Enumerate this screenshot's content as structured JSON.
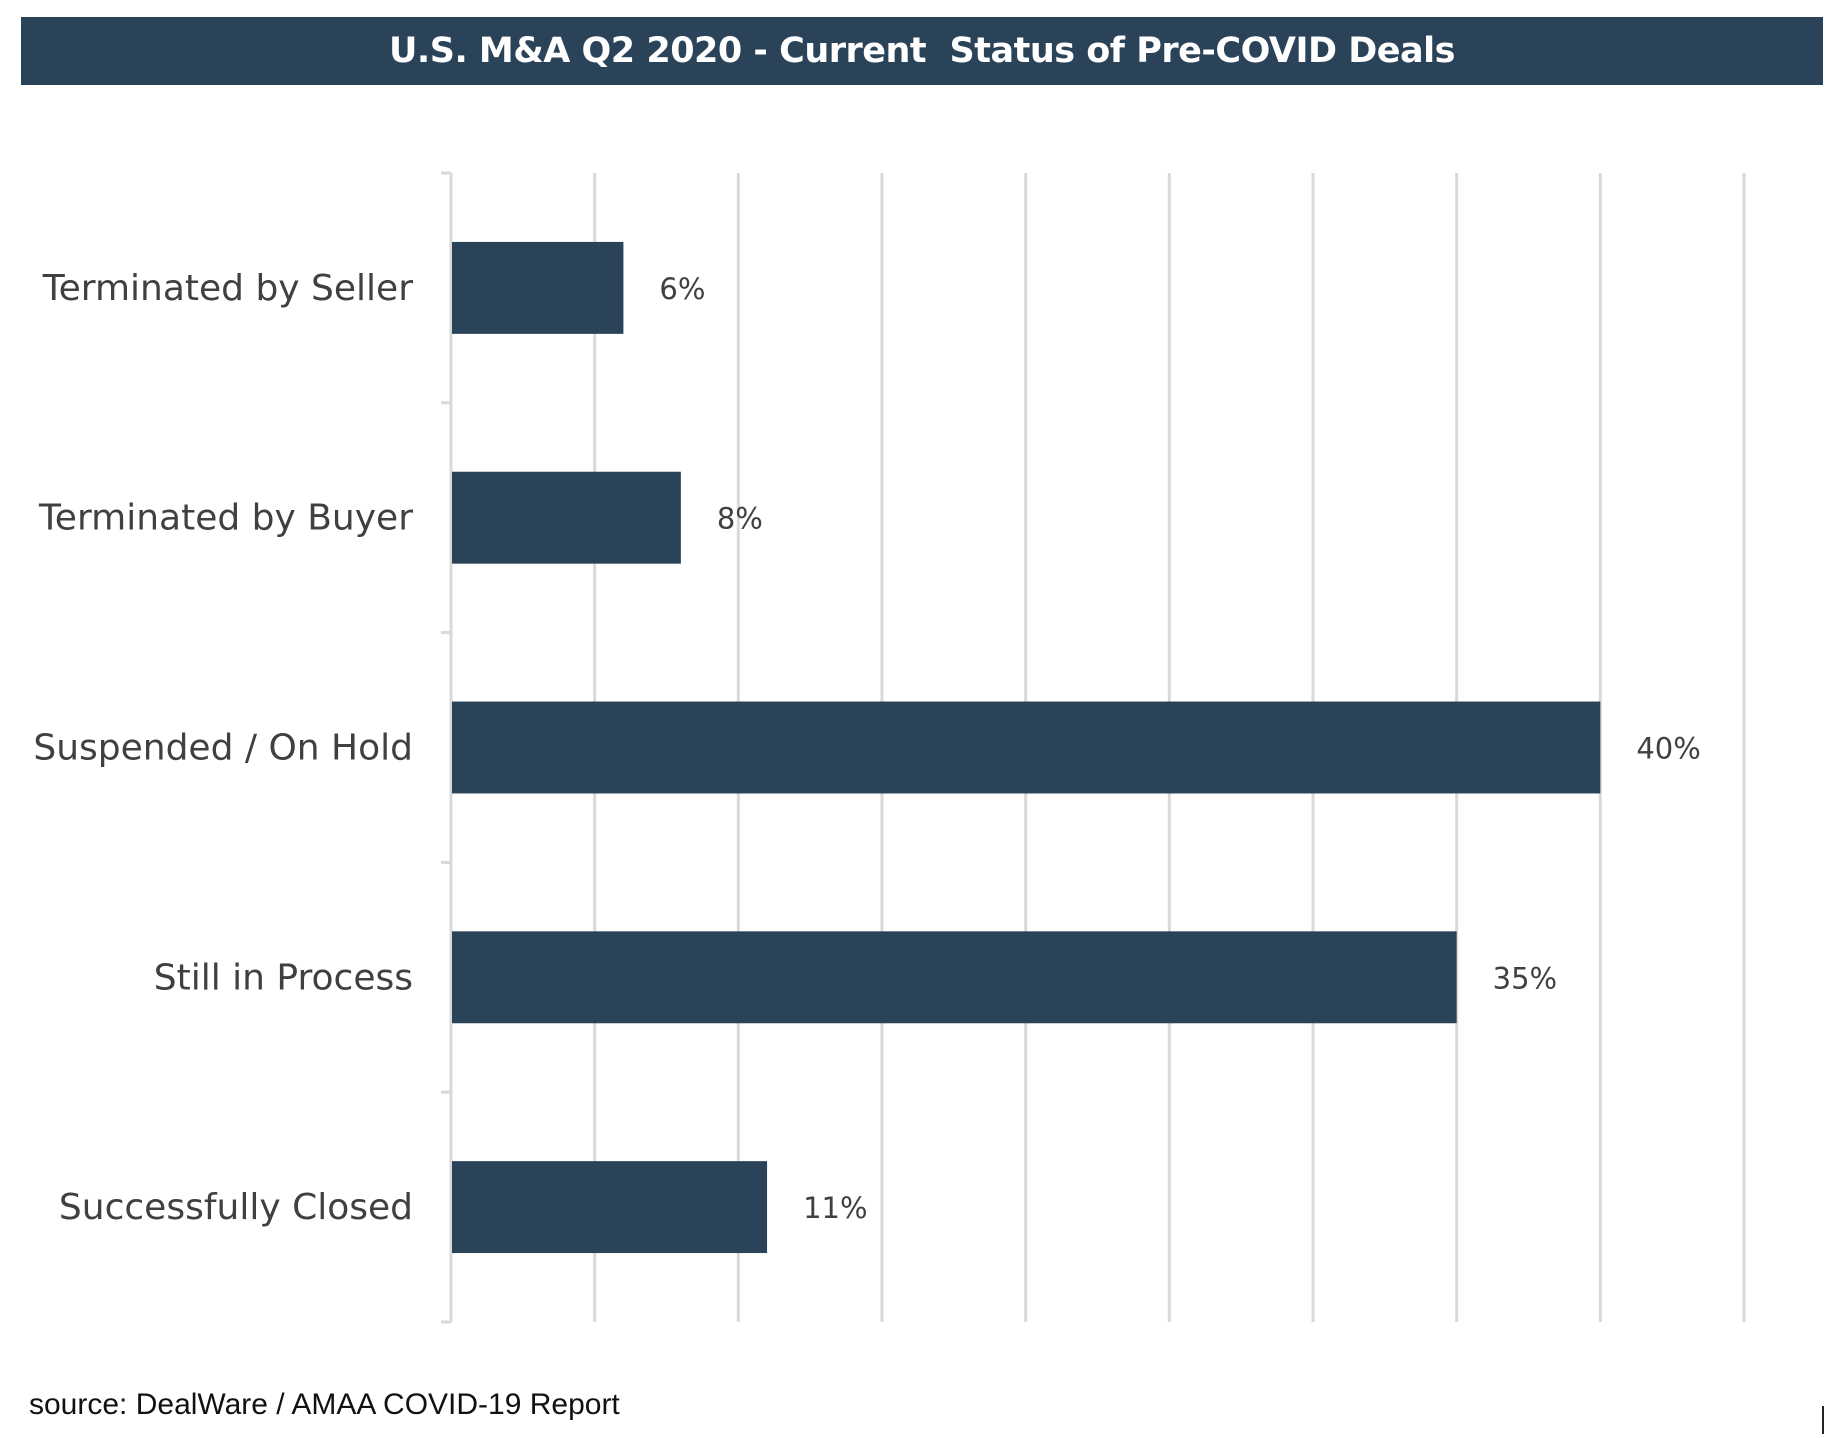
{
  "chart_data": {
    "type": "bar",
    "orientation": "horizontal",
    "title": "U.S. M&A Q2 2020 - Current  Status of Pre-COVID Deals",
    "categories": [
      "Terminated by Seller",
      "Terminated by Buyer",
      "Suspended / On Hold",
      "Still in Process",
      "Successfully Closed"
    ],
    "values": [
      6,
      8,
      40,
      35,
      11
    ],
    "value_labels": [
      "6%",
      "8%",
      "40%",
      "35%",
      "11%"
    ],
    "xlim": [
      0,
      45
    ],
    "grid": true,
    "legend": "none",
    "bar_color": "#2a4359",
    "source": "source: DealWare / AMAA COVID-19 Report"
  }
}
